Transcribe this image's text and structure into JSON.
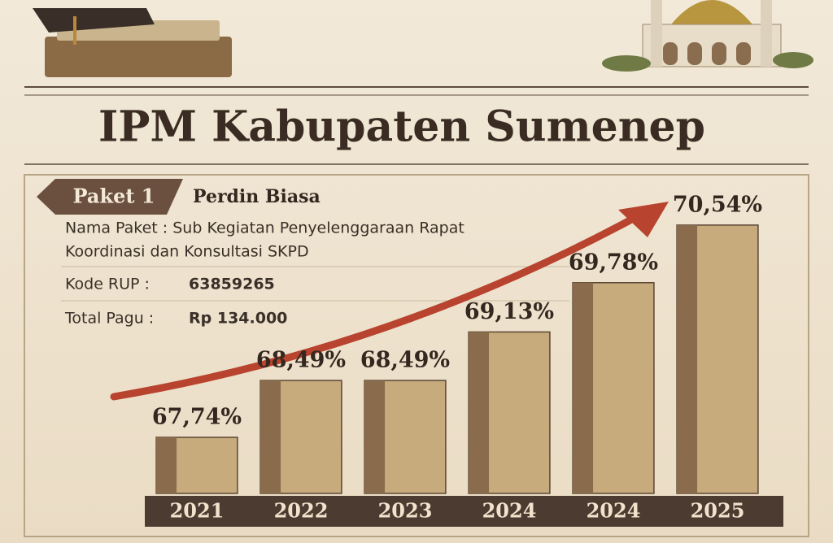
{
  "chart_data": {
    "type": "bar",
    "title": "IPM Kabupaten Sumenep",
    "categories": [
      "2021",
      "2022",
      "2023",
      "2024",
      "2024",
      "2025"
    ],
    "values": [
      67.74,
      68.49,
      68.49,
      69.13,
      69.78,
      70.54
    ],
    "value_labels": [
      "67,74%",
      "68,49%",
      "68,49%",
      "69,13%",
      "69,78%",
      "70,54%"
    ],
    "color": "#c7ab7c",
    "ylim": [
      67,
      71
    ]
  },
  "info": {
    "badge": "Paket 1",
    "name": "Perdin Biasa",
    "package_line1": "Nama Paket : Sub Kegiatan Penyelenggaraan Rapat",
    "package_line2": "Koordinasi dan Konsultasi SKPD",
    "rup_label": "Kode RUP :",
    "rup_value": "63859265",
    "pagu_label": "Total Pagu :",
    "pagu_value": "Rp 134.000"
  }
}
